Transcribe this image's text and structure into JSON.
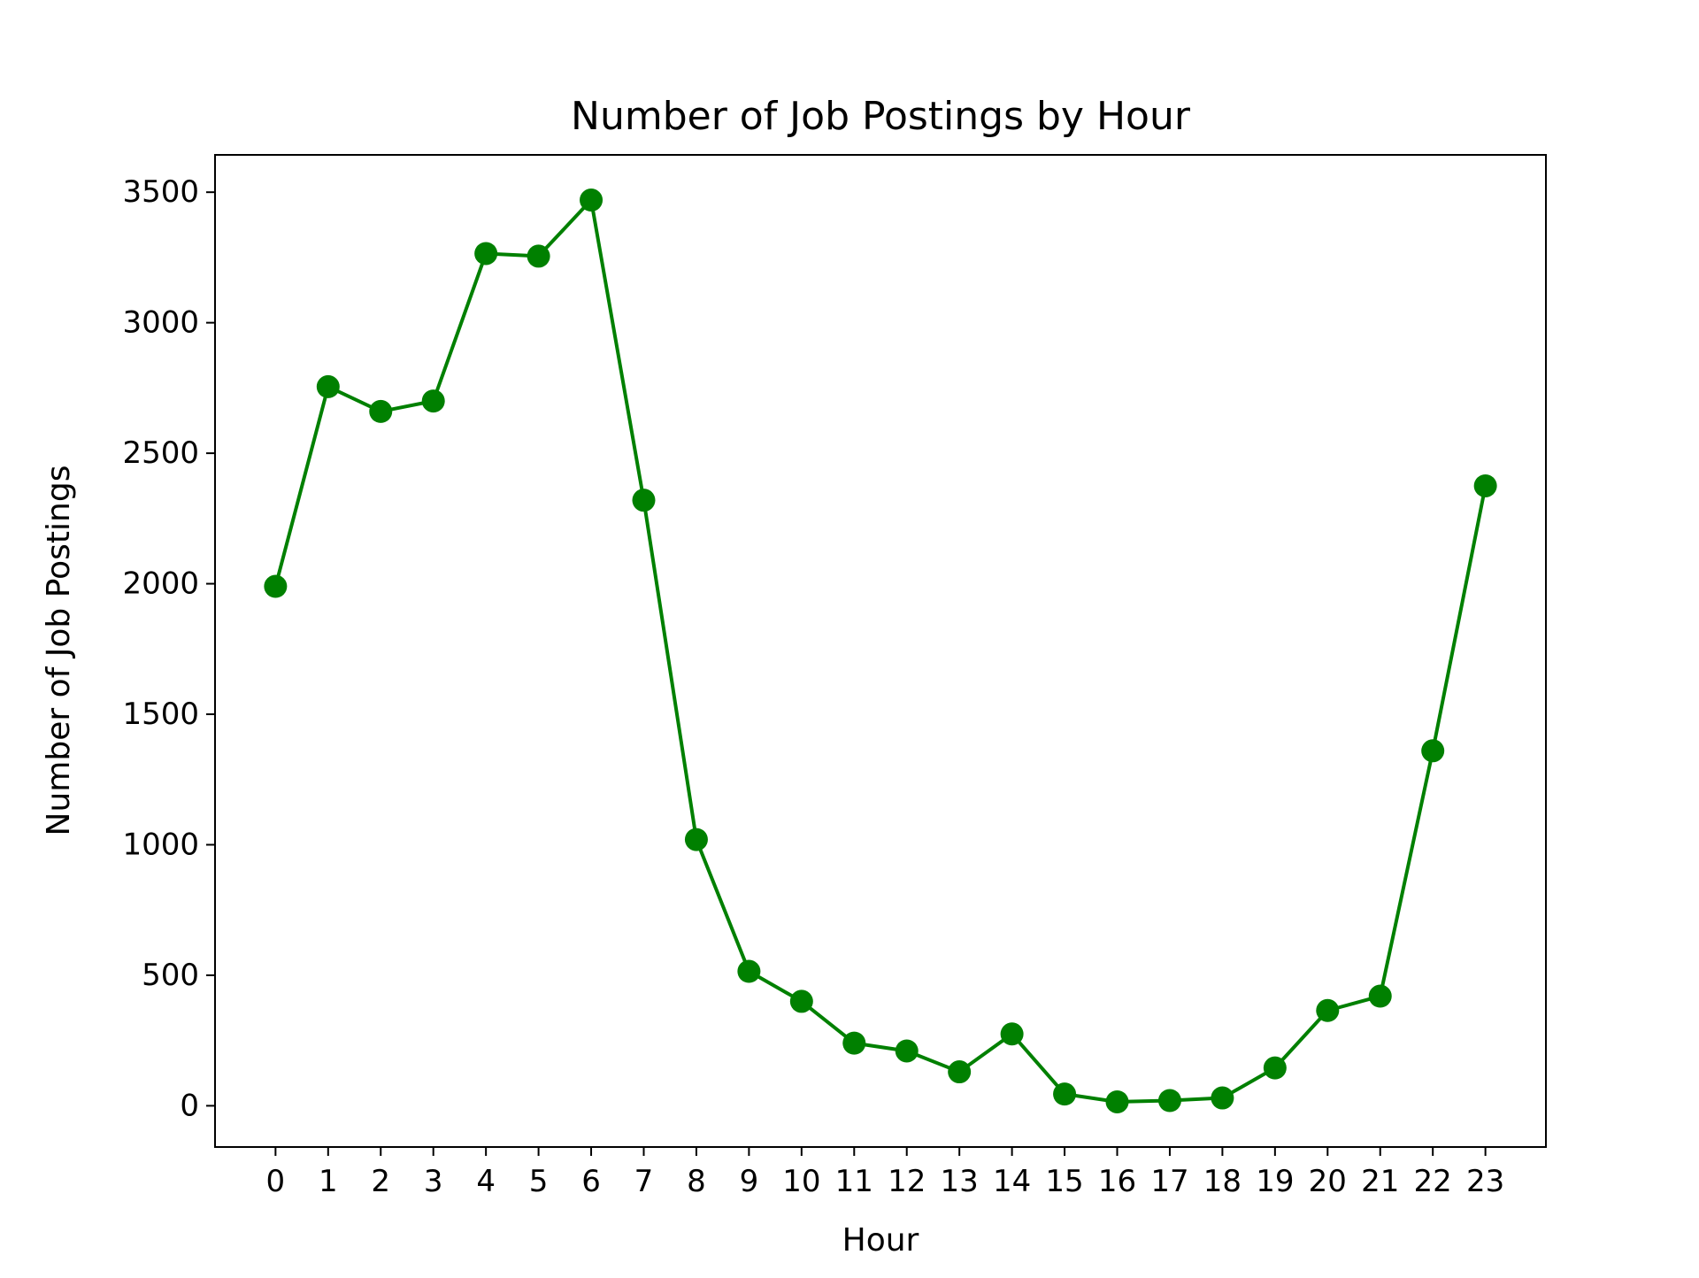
{
  "chart_data": {
    "type": "line",
    "title": "Number of Job Postings by Hour",
    "xlabel": "Hour",
    "ylabel": "Number of Job Postings",
    "x": [
      0,
      1,
      2,
      3,
      4,
      5,
      6,
      7,
      8,
      9,
      10,
      11,
      12,
      13,
      14,
      15,
      16,
      17,
      18,
      19,
      20,
      21,
      22,
      23
    ],
    "series": [
      {
        "color": "#008000",
        "marker": "circle",
        "values": [
          1990,
          2755,
          2660,
          2700,
          3265,
          3255,
          3470,
          2320,
          1020,
          515,
          400,
          240,
          210,
          130,
          275,
          45,
          15,
          20,
          30,
          145,
          365,
          420,
          1360,
          2375
        ]
      }
    ],
    "xticks": [
      "0",
      "1",
      "2",
      "3",
      "4",
      "5",
      "6",
      "7",
      "8",
      "9",
      "10",
      "11",
      "12",
      "13",
      "14",
      "15",
      "16",
      "17",
      "18",
      "19",
      "20",
      "21",
      "22",
      "23"
    ],
    "yticks": [
      0,
      500,
      1000,
      1500,
      2000,
      2500,
      3000,
      3500
    ],
    "xlim": [
      -1.15,
      24.15
    ],
    "ylim": [
      -158,
      3643
    ],
    "grid": false,
    "legend": "none"
  }
}
